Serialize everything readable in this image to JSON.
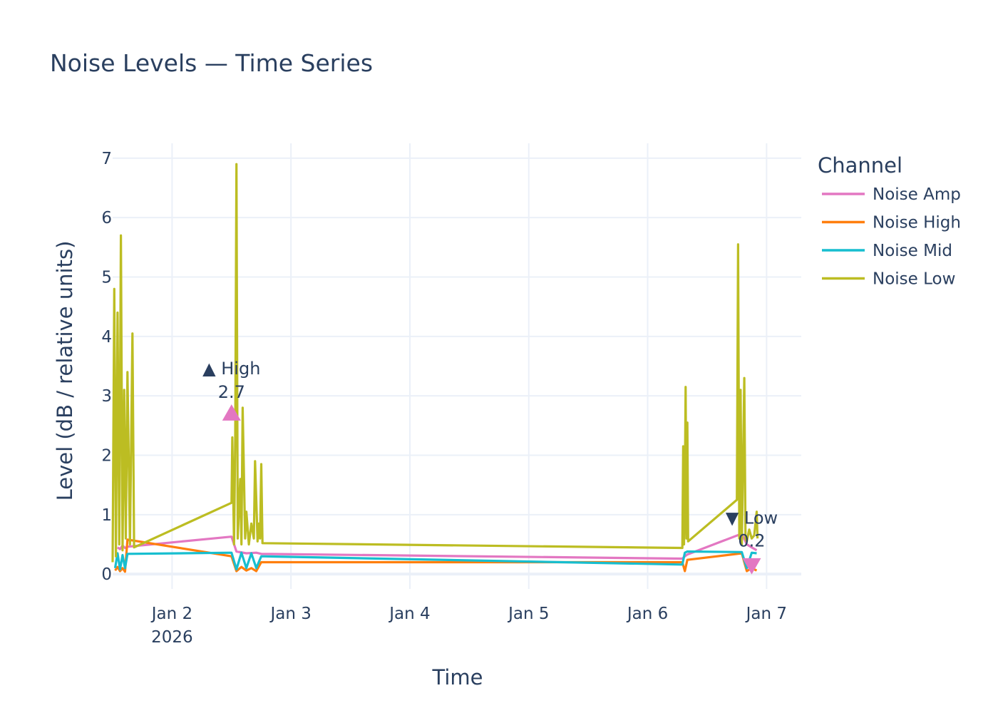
{
  "chart_data": {
    "type": "line",
    "title": "Noise Levels — Time Series",
    "xlabel": "Time",
    "ylabel": "Level (dB / relative units)",
    "x_ticks": [
      {
        "date": "2026-01-02",
        "label": "Jan 2",
        "sublabel": "2026"
      },
      {
        "date": "2026-01-03",
        "label": "Jan 3",
        "sublabel": ""
      },
      {
        "date": "2026-01-04",
        "label": "Jan 4",
        "sublabel": ""
      },
      {
        "date": "2026-01-05",
        "label": "Jan 5",
        "sublabel": ""
      },
      {
        "date": "2026-01-06",
        "label": "Jan 6",
        "sublabel": ""
      },
      {
        "date": "2026-01-07",
        "label": "Jan 7",
        "sublabel": ""
      }
    ],
    "xlim": [
      "2026-01-01T12:00",
      "2026-01-07T07:00"
    ],
    "ylim": [
      -0.25,
      7.25
    ],
    "y_ticks": [
      0,
      1,
      2,
      3,
      4,
      5,
      6,
      7
    ],
    "grid": true,
    "legend": {
      "title": "Channel",
      "placement": "right"
    },
    "series": [
      {
        "name": "Noise Amp",
        "color": "#e377c2",
        "points": [
          [
            "2026-01-01T13:00",
            0.45
          ],
          [
            "2026-01-01T13:30",
            0.42
          ],
          [
            "2026-01-01T14:00",
            0.48
          ],
          [
            "2026-01-01T14:30",
            0.44
          ],
          [
            "2026-01-01T15:00",
            0.46
          ],
          [
            "2026-01-02T12:00",
            0.63
          ],
          [
            "2026-01-02T13:00",
            0.38
          ],
          [
            "2026-01-02T15:00",
            0.35
          ],
          [
            "2026-01-02T17:00",
            0.36
          ],
          [
            "2026-01-02T18:00",
            0.34
          ],
          [
            "2026-01-06T07:00",
            0.26
          ],
          [
            "2026-01-06T07:30",
            0.3
          ],
          [
            "2026-01-06T08:00",
            0.33
          ],
          [
            "2026-01-06T19:00",
            0.68
          ],
          [
            "2026-01-06T20:00",
            0.5
          ],
          [
            "2026-01-06T21:00",
            0.45
          ],
          [
            "2026-01-06T22:00",
            0.4
          ]
        ]
      },
      {
        "name": "Noise High",
        "color": "#ff7f0e",
        "points": [
          [
            "2026-01-01T12:30",
            0.06
          ],
          [
            "2026-01-01T13:00",
            0.12
          ],
          [
            "2026-01-01T13:30",
            0.05
          ],
          [
            "2026-01-01T14:00",
            0.1
          ],
          [
            "2026-01-01T14:30",
            0.04
          ],
          [
            "2026-01-01T15:00",
            0.58
          ],
          [
            "2026-01-02T12:00",
            0.3
          ],
          [
            "2026-01-02T13:00",
            0.05
          ],
          [
            "2026-01-02T14:00",
            0.12
          ],
          [
            "2026-01-02T15:00",
            0.06
          ],
          [
            "2026-01-02T16:00",
            0.1
          ],
          [
            "2026-01-02T17:00",
            0.05
          ],
          [
            "2026-01-02T18:00",
            0.2
          ],
          [
            "2026-01-06T07:00",
            0.2
          ],
          [
            "2026-01-06T07:30",
            0.05
          ],
          [
            "2026-01-06T08:00",
            0.24
          ],
          [
            "2026-01-06T19:00",
            0.35
          ],
          [
            "2026-01-06T20:00",
            0.05
          ],
          [
            "2026-01-06T21:00",
            0.1
          ],
          [
            "2026-01-06T22:00",
            0.06
          ]
        ]
      },
      {
        "name": "Noise Mid",
        "color": "#17becf",
        "points": [
          [
            "2026-01-01T12:30",
            0.1
          ],
          [
            "2026-01-01T13:00",
            0.35
          ],
          [
            "2026-01-01T13:30",
            0.08
          ],
          [
            "2026-01-01T14:00",
            0.32
          ],
          [
            "2026-01-01T14:30",
            0.1
          ],
          [
            "2026-01-01T15:00",
            0.34
          ],
          [
            "2026-01-02T12:00",
            0.36
          ],
          [
            "2026-01-02T13:00",
            0.08
          ],
          [
            "2026-01-02T14:00",
            0.36
          ],
          [
            "2026-01-02T15:00",
            0.1
          ],
          [
            "2026-01-02T16:00",
            0.35
          ],
          [
            "2026-01-02T17:00",
            0.1
          ],
          [
            "2026-01-02T18:00",
            0.3
          ],
          [
            "2026-01-06T07:00",
            0.16
          ],
          [
            "2026-01-06T07:30",
            0.36
          ],
          [
            "2026-01-06T08:00",
            0.38
          ],
          [
            "2026-01-06T19:00",
            0.37
          ],
          [
            "2026-01-06T20:00",
            0.1
          ],
          [
            "2026-01-06T21:00",
            0.36
          ],
          [
            "2026-01-06T22:00",
            0.35
          ]
        ]
      },
      {
        "name": "Noise Low",
        "color": "#bcbd22",
        "points": [
          [
            "2026-01-01T12:00",
            0.2
          ],
          [
            "2026-01-01T12:20",
            4.8
          ],
          [
            "2026-01-01T12:40",
            0.3
          ],
          [
            "2026-01-01T13:00",
            4.4
          ],
          [
            "2026-01-01T13:20",
            0.5
          ],
          [
            "2026-01-01T13:40",
            5.7
          ],
          [
            "2026-01-01T14:00",
            0.4
          ],
          [
            "2026-01-01T14:20",
            3.1
          ],
          [
            "2026-01-01T14:40",
            0.6
          ],
          [
            "2026-01-01T15:00",
            3.4
          ],
          [
            "2026-01-01T15:30",
            0.5
          ],
          [
            "2026-01-01T16:00",
            4.05
          ],
          [
            "2026-01-01T16:20",
            0.45
          ],
          [
            "2026-01-02T12:00",
            1.2
          ],
          [
            "2026-01-02T12:10",
            2.3
          ],
          [
            "2026-01-02T12:30",
            0.5
          ],
          [
            "2026-01-02T12:45",
            2.3
          ],
          [
            "2026-01-02T13:00",
            6.9
          ],
          [
            "2026-01-02T13:15",
            0.6
          ],
          [
            "2026-01-02T13:45",
            1.6
          ],
          [
            "2026-01-02T14:00",
            0.5
          ],
          [
            "2026-01-02T14:15",
            2.8
          ],
          [
            "2026-01-02T14:45",
            0.6
          ],
          [
            "2026-01-02T15:00",
            1.05
          ],
          [
            "2026-01-02T15:30",
            0.5
          ],
          [
            "2026-01-02T16:00",
            0.85
          ],
          [
            "2026-01-02T16:30",
            0.6
          ],
          [
            "2026-01-02T16:45",
            1.9
          ],
          [
            "2026-01-02T17:15",
            0.55
          ],
          [
            "2026-01-02T17:30",
            0.85
          ],
          [
            "2026-01-02T17:45",
            0.6
          ],
          [
            "2026-01-02T18:00",
            1.85
          ],
          [
            "2026-01-02T18:15",
            0.52
          ],
          [
            "2026-01-06T07:00",
            0.44
          ],
          [
            "2026-01-06T07:10",
            2.15
          ],
          [
            "2026-01-06T07:20",
            0.5
          ],
          [
            "2026-01-06T07:30",
            1.4
          ],
          [
            "2026-01-06T07:40",
            3.15
          ],
          [
            "2026-01-06T07:50",
            0.6
          ],
          [
            "2026-01-06T08:00",
            2.55
          ],
          [
            "2026-01-06T08:10",
            0.55
          ],
          [
            "2026-01-06T18:00",
            1.25
          ],
          [
            "2026-01-06T18:15",
            5.55
          ],
          [
            "2026-01-06T18:30",
            0.6
          ],
          [
            "2026-01-06T18:45",
            3.1
          ],
          [
            "2026-01-06T19:00",
            0.5
          ],
          [
            "2026-01-06T19:10",
            1.4
          ],
          [
            "2026-01-06T19:30",
            3.3
          ],
          [
            "2026-01-06T19:45",
            0.6
          ],
          [
            "2026-01-06T20:00",
            0.55
          ],
          [
            "2026-01-06T20:30",
            0.75
          ],
          [
            "2026-01-06T21:00",
            0.6
          ],
          [
            "2026-01-06T21:30",
            0.65
          ],
          [
            "2026-01-06T22:00",
            1.05
          ],
          [
            "2026-01-06T22:10",
            0.6
          ]
        ]
      }
    ],
    "annotations": [
      {
        "kind": "high",
        "marker": "triangle-up",
        "x": "2026-01-02T12:00",
        "y": 2.7,
        "label": "▲ High",
        "value": "2.7",
        "color": "#e377c2"
      },
      {
        "kind": "low",
        "marker": "triangle-down",
        "x": "2026-01-06T21:00",
        "y": 0.15,
        "label": "▼ Low",
        "value": "0.2",
        "color": "#e377c2"
      }
    ]
  }
}
